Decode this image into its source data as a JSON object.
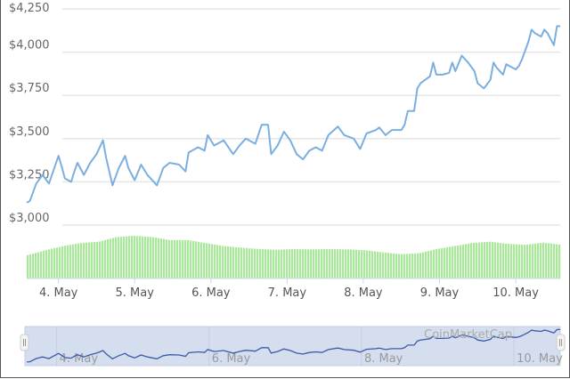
{
  "chart_data": {
    "type": "line",
    "title": "",
    "xlabel": "",
    "ylabel": "",
    "ylim": [
      3000,
      4250
    ],
    "y_ticks": [
      "$3,000",
      "$3,250",
      "$3,500",
      "$3,750",
      "$4,000",
      "$4,250"
    ],
    "y_tick_values": [
      3000,
      3250,
      3500,
      3750,
      4000,
      4250
    ],
    "x_ticks": [
      "4. May",
      "5. May",
      "6. May",
      "7. May",
      "8. May",
      "9. May",
      "10. May"
    ],
    "x_tick_dates": [
      "2021-05-04",
      "2021-05-05",
      "2021-05-06",
      "2021-05-07",
      "2021-05-08",
      "2021-05-09",
      "2021-05-10"
    ],
    "xlim": [
      "2021-05-03T14:00",
      "2021-05-10T14:00"
    ],
    "grid": "horizontal",
    "colors": {
      "price_line": "#7aafe0",
      "volume_bars": "#a9e89a",
      "navigator_line": "#3a5ba8",
      "navigator_fill": "#d5deef"
    },
    "series": [
      {
        "x": [
          "2021-05-03T14:00",
          "2021-05-03T15:00",
          "2021-05-03T17:00",
          "2021-05-03T19:00",
          "2021-05-03T21:00",
          "2021-05-04T00:00",
          "2021-05-04T01:00",
          "2021-05-04T02:00",
          "2021-05-04T04:00",
          "2021-05-04T05:00",
          "2021-05-04T06:00",
          "2021-05-04T08:00",
          "2021-05-04T10:00",
          "2021-05-04T12:00",
          "2021-05-04T13:00",
          "2021-05-04T14:00",
          "2021-05-04T15:00",
          "2021-05-04T16:00",
          "2021-05-04T17:00",
          "2021-05-04T19:00",
          "2021-05-04T21:00",
          "2021-05-04T22:00",
          "2021-05-05T00:00",
          "2021-05-05T02:00",
          "2021-05-05T04:00",
          "2021-05-05T07:00",
          "2021-05-05T09:00",
          "2021-05-05T11:00",
          "2021-05-05T14:00",
          "2021-05-05T16:00",
          "2021-05-05T17:00",
          "2021-05-05T20:00",
          "2021-05-05T22:00",
          "2021-05-05T23:00",
          "2021-05-06T01:00",
          "2021-05-06T04:00",
          "2021-05-06T07:00",
          "2021-05-06T09:00",
          "2021-05-06T11:00",
          "2021-05-06T14:00",
          "2021-05-06T16:00",
          "2021-05-06T18:00",
          "2021-05-06T19:00",
          "2021-05-06T21:00",
          "2021-05-06T23:00",
          "2021-05-07T01:00",
          "2021-05-07T03:00",
          "2021-05-07T05:00",
          "2021-05-07T07:00",
          "2021-05-07T09:00",
          "2021-05-07T11:00",
          "2021-05-07T13:00",
          "2021-05-07T16:00",
          "2021-05-07T18:00",
          "2021-05-07T21:00",
          "2021-05-07T23:00",
          "2021-05-08T01:00",
          "2021-05-08T04:00",
          "2021-05-08T05:00",
          "2021-05-08T07:00",
          "2021-05-08T09:00",
          "2021-05-08T12:00",
          "2021-05-08T13:00",
          "2021-05-08T14:00",
          "2021-05-08T16:00",
          "2021-05-08T17:00",
          "2021-05-08T18:00",
          "2021-05-08T21:00",
          "2021-05-08T22:00",
          "2021-05-08T23:00",
          "2021-05-09T01:00",
          "2021-05-09T03:00",
          "2021-05-09T04:00",
          "2021-05-09T05:00",
          "2021-05-09T07:00",
          "2021-05-09T09:00",
          "2021-05-09T11:00",
          "2021-05-09T12:00",
          "2021-05-09T14:00",
          "2021-05-09T16:00",
          "2021-05-09T17:00",
          "2021-05-09T18:00",
          "2021-05-09T20:00",
          "2021-05-09T21:00",
          "2021-05-10T00:00",
          "2021-05-10T01:00",
          "2021-05-10T02:00",
          "2021-05-10T04:00",
          "2021-05-10T05:00",
          "2021-05-10T06:00",
          "2021-05-10T08:00",
          "2021-05-10T09:00",
          "2021-05-10T10:00",
          "2021-05-10T12:00",
          "2021-05-10T13:00",
          "2021-05-10T14:00"
        ],
        "values": [
          3130,
          3140,
          3240,
          3290,
          3240,
          3400,
          3340,
          3270,
          3250,
          3310,
          3360,
          3290,
          3360,
          3410,
          3450,
          3490,
          3390,
          3310,
          3230,
          3330,
          3400,
          3330,
          3260,
          3350,
          3290,
          3230,
          3330,
          3360,
          3350,
          3310,
          3420,
          3450,
          3430,
          3520,
          3460,
          3490,
          3410,
          3460,
          3500,
          3470,
          3580,
          3580,
          3410,
          3460,
          3540,
          3490,
          3410,
          3380,
          3430,
          3450,
          3430,
          3520,
          3570,
          3520,
          3500,
          3440,
          3530,
          3550,
          3565,
          3520,
          3550,
          3550,
          3580,
          3660,
          3660,
          3790,
          3820,
          3860,
          3940,
          3870,
          3870,
          3880,
          3940,
          3890,
          3980,
          3940,
          3890,
          3820,
          3790,
          3840,
          3940,
          3910,
          3870,
          3930,
          3900,
          3920,
          3960,
          4060,
          4130,
          4110,
          4090,
          4130,
          4110,
          4040,
          4150,
          4150
        ]
      }
    ],
    "volume_relative": [
      0.55,
      0.66,
      0.76,
      0.83,
      0.86,
      0.97,
      1.0,
      0.97,
      0.9,
      0.9,
      0.83,
      0.76,
      0.72,
      0.69,
      0.67,
      0.69,
      0.68,
      0.69,
      0.68,
      0.66,
      0.61,
      0.57,
      0.59,
      0.69,
      0.76,
      0.83,
      0.86,
      0.81,
      0.79,
      0.84,
      0.79
    ],
    "navigator": {
      "x_ticks": [
        "4. May",
        "6. May",
        "8. May",
        "10. May"
      ],
      "x_tick_dates": [
        "2021-05-04",
        "2021-05-06",
        "2021-05-08",
        "2021-05-10"
      ]
    },
    "watermark": "CoinMarketCap"
  }
}
